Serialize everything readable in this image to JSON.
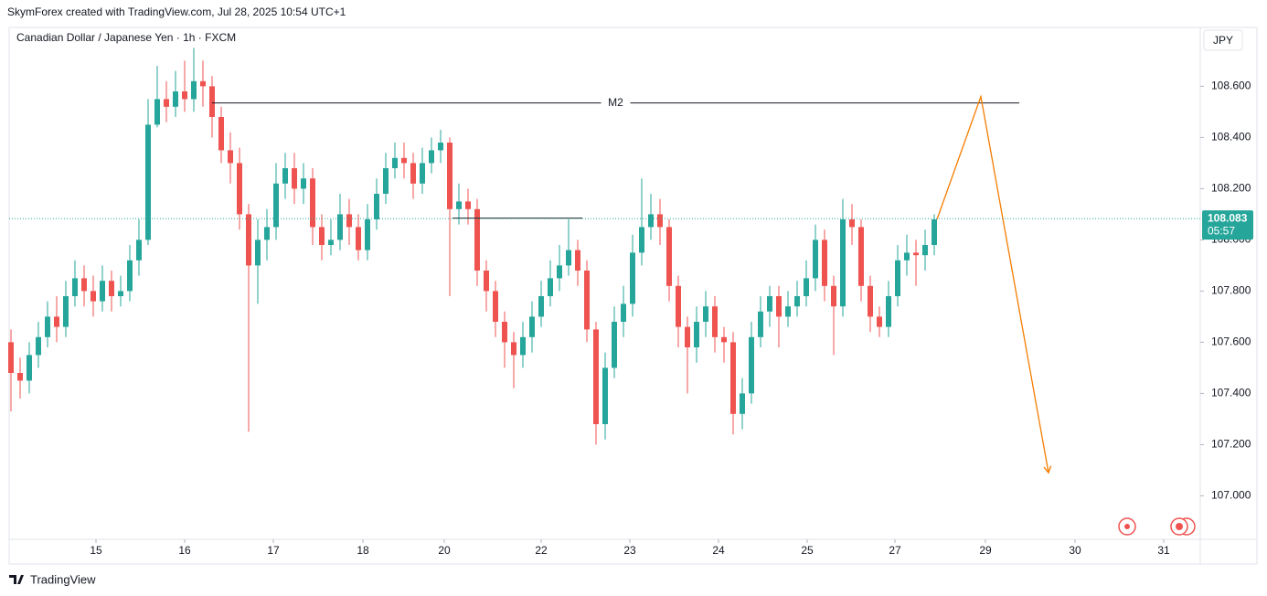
{
  "header": {
    "credit": "SkymForex created with TradingView.com, Jul 28, 2025 10:54 UTC+1",
    "brand": "TradingView"
  },
  "chart_data": {
    "type": "candlestick",
    "title": "Canadian Dollar / Japanese Yen · 1h · FXCM",
    "currency": "JPY",
    "up_color": "#26a69a",
    "down_color": "#ef5350",
    "xlim": [
      -0.2,
      130.1
    ],
    "xticks": [
      {
        "value": 9.3,
        "label": "15"
      },
      {
        "value": 19,
        "label": "16"
      },
      {
        "value": 28.7,
        "label": "17"
      },
      {
        "value": 38.5,
        "label": "18"
      },
      {
        "value": 47.4,
        "label": "20"
      },
      {
        "value": 58,
        "label": "22"
      },
      {
        "value": 67.7,
        "label": "23"
      },
      {
        "value": 77.4,
        "label": "24"
      },
      {
        "value": 87.1,
        "label": "25"
      },
      {
        "value": 96.7,
        "label": "27"
      },
      {
        "value": 106.6,
        "label": "29"
      },
      {
        "value": 116.4,
        "label": "30"
      },
      {
        "value": 126.1,
        "label": "31"
      }
    ],
    "ylim": [
      106.83,
      108.83
    ],
    "yticks": [
      {
        "value": 107.0,
        "label": "107.000"
      },
      {
        "value": 107.2,
        "label": "107.200"
      },
      {
        "value": 107.4,
        "label": "107.400"
      },
      {
        "value": 107.6,
        "label": "107.600"
      },
      {
        "value": 107.8,
        "label": "107.800"
      },
      {
        "value": 108.0,
        "label": "108.000"
      },
      {
        "value": 108.2,
        "label": "108.200"
      },
      {
        "value": 108.4,
        "label": "108.400"
      },
      {
        "value": 108.6,
        "label": "108.600"
      }
    ],
    "open": [
      107.6,
      107.48,
      107.45,
      107.55,
      107.62,
      107.7,
      107.66,
      107.78,
      107.85,
      107.8,
      107.76,
      107.84,
      107.78,
      107.8,
      107.92,
      108.0,
      108.45,
      108.55,
      108.52,
      108.58,
      108.55,
      108.62,
      108.6,
      108.48,
      108.35,
      108.3,
      108.1,
      107.9,
      108.0,
      108.05,
      108.22,
      108.28,
      108.2,
      108.24,
      108.05,
      107.98,
      108.0,
      108.1,
      108.05,
      107.96,
      108.08,
      108.18,
      108.28,
      108.32,
      108.3,
      108.22,
      108.3,
      108.35,
      108.38,
      108.12,
      108.15,
      108.12,
      107.88,
      107.8,
      107.68,
      107.6,
      107.55,
      107.62,
      107.7,
      107.78,
      107.85,
      107.9,
      107.96,
      107.88,
      107.65,
      107.28,
      107.5,
      107.68,
      107.75,
      107.95,
      108.05,
      108.1,
      108.05,
      107.82,
      107.66,
      107.58,
      107.68,
      107.74,
      107.62,
      107.6,
      107.32,
      107.4,
      107.62,
      107.72,
      107.78,
      107.7,
      107.74,
      107.78,
      107.85,
      108.0,
      107.82,
      107.74,
      108.08,
      108.05,
      107.82,
      107.7,
      107.66,
      107.78,
      107.92,
      107.95,
      107.94,
      107.98
    ],
    "high": [
      107.65,
      107.54,
      107.6,
      107.68,
      107.76,
      107.78,
      107.84,
      107.92,
      107.9,
      107.86,
      107.9,
      107.88,
      107.86,
      107.98,
      108.08,
      108.55,
      108.68,
      108.62,
      108.66,
      108.7,
      108.75,
      108.7,
      108.64,
      108.52,
      108.42,
      108.36,
      108.14,
      108.08,
      108.12,
      108.3,
      108.34,
      108.34,
      108.3,
      108.28,
      108.1,
      108.08,
      108.18,
      108.16,
      108.1,
      108.14,
      108.24,
      108.34,
      108.38,
      108.38,
      108.34,
      108.36,
      108.4,
      108.43,
      108.4,
      108.22,
      108.2,
      108.16,
      107.92,
      107.84,
      107.72,
      107.64,
      107.68,
      107.76,
      107.84,
      107.92,
      107.98,
      108.08,
      108.0,
      107.92,
      107.68,
      107.56,
      107.74,
      107.82,
      108.02,
      108.24,
      108.18,
      108.16,
      108.08,
      107.86,
      107.7,
      107.74,
      107.8,
      107.78,
      107.66,
      107.64,
      107.46,
      107.68,
      107.78,
      107.82,
      107.82,
      107.8,
      107.84,
      107.92,
      108.06,
      108.04,
      107.86,
      108.16,
      108.14,
      108.08,
      107.86,
      107.74,
      107.84,
      107.98,
      108.02,
      108.0,
      108.04,
      108.1
    ],
    "low": [
      107.33,
      107.38,
      107.4,
      107.5,
      107.58,
      107.6,
      107.62,
      107.74,
      107.74,
      107.7,
      107.72,
      107.72,
      107.74,
      107.76,
      107.86,
      107.98,
      108.44,
      108.46,
      108.48,
      108.5,
      108.5,
      108.52,
      108.4,
      108.3,
      108.22,
      108.04,
      107.25,
      107.75,
      107.92,
      108.0,
      108.16,
      108.14,
      108.14,
      107.98,
      107.92,
      107.94,
      107.96,
      107.98,
      107.92,
      107.92,
      108.04,
      108.14,
      108.24,
      108.24,
      108.16,
      108.18,
      108.26,
      108.3,
      107.78,
      108.06,
      108.06,
      107.82,
      107.72,
      107.62,
      107.5,
      107.42,
      107.5,
      107.56,
      107.66,
      107.74,
      107.8,
      107.86,
      107.82,
      107.6,
      107.2,
      107.22,
      107.46,
      107.62,
      107.7,
      107.9,
      108.0,
      107.98,
      107.76,
      107.58,
      107.4,
      107.52,
      107.62,
      107.56,
      107.52,
      107.24,
      107.26,
      107.36,
      107.58,
      107.66,
      107.58,
      107.66,
      107.7,
      107.74,
      107.8,
      107.76,
      107.55,
      107.7,
      107.98,
      107.76,
      107.64,
      107.62,
      107.62,
      107.74,
      107.86,
      107.82,
      107.88,
      107.94
    ],
    "close": [
      107.48,
      107.45,
      107.55,
      107.62,
      107.7,
      107.66,
      107.78,
      107.85,
      107.8,
      107.76,
      107.84,
      107.78,
      107.8,
      107.92,
      108.0,
      108.45,
      108.55,
      108.52,
      108.58,
      108.55,
      108.62,
      108.6,
      108.48,
      108.35,
      108.3,
      108.1,
      107.9,
      108.0,
      108.05,
      108.22,
      108.28,
      108.2,
      108.24,
      108.05,
      107.98,
      108.0,
      108.1,
      108.05,
      107.96,
      108.08,
      108.18,
      108.28,
      108.32,
      108.3,
      108.22,
      108.3,
      108.35,
      108.38,
      108.12,
      108.15,
      108.12,
      107.88,
      107.8,
      107.68,
      107.6,
      107.55,
      107.62,
      107.7,
      107.78,
      107.85,
      107.9,
      107.96,
      107.88,
      107.65,
      107.28,
      107.5,
      107.68,
      107.75,
      107.95,
      108.05,
      108.1,
      108.05,
      107.82,
      107.66,
      107.58,
      107.68,
      107.74,
      107.62,
      107.6,
      107.32,
      107.4,
      107.62,
      107.72,
      107.78,
      107.7,
      107.74,
      107.78,
      107.85,
      108.0,
      107.82,
      107.74,
      108.08,
      108.05,
      107.82,
      107.7,
      107.66,
      107.78,
      107.92,
      107.95,
      107.94,
      107.98,
      108.08
    ],
    "levels": [
      {
        "label": "M2",
        "value": 108.535,
        "x": [
          22,
          110.3
        ]
      },
      {
        "value": 108.085,
        "x": [
          48.3,
          62.5
        ]
      }
    ],
    "projection": {
      "color": "#f57c00",
      "x": [
        101.3,
        106.1,
        113.5
      ],
      "y": [
        108.08,
        108.56,
        107.09
      ]
    },
    "last_price": {
      "value": 108.083,
      "countdown": "05:57"
    }
  }
}
